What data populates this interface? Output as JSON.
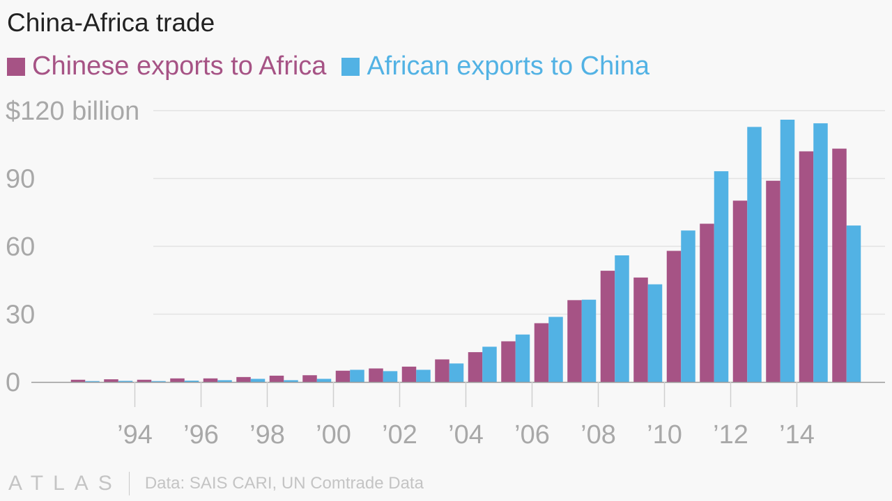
{
  "title": "China-Africa trade",
  "colors": {
    "chinese": "#a65385",
    "african": "#52b2e4"
  },
  "footer": {
    "logo": "ATLAS",
    "source": "Data: SAIS CARI, UN Comtrade Data"
  },
  "chart_data": {
    "type": "bar",
    "title": "China-Africa trade",
    "legend_position": "top-left",
    "grid": true,
    "ylim": [
      0,
      120
    ],
    "y_ticks": [
      {
        "value": 0,
        "label": "0"
      },
      {
        "value": 30,
        "label": "30"
      },
      {
        "value": 60,
        "label": "60"
      },
      {
        "value": 90,
        "label": "90"
      },
      {
        "value": 120,
        "label": "$120 billion"
      }
    ],
    "categories": [
      1992,
      1993,
      1994,
      1995,
      1996,
      1997,
      1998,
      1999,
      2000,
      2001,
      2002,
      2003,
      2004,
      2005,
      2006,
      2007,
      2008,
      2009,
      2010,
      2011,
      2012,
      2013,
      2014,
      2015
    ],
    "x_ticks": [
      {
        "year": 1994,
        "label": "’94"
      },
      {
        "year": 1996,
        "label": "’96"
      },
      {
        "year": 1998,
        "label": "’98"
      },
      {
        "year": 2000,
        "label": "’00"
      },
      {
        "year": 2002,
        "label": "’02"
      },
      {
        "year": 2004,
        "label": "’04"
      },
      {
        "year": 2006,
        "label": "’06"
      },
      {
        "year": 2008,
        "label": "’08"
      },
      {
        "year": 2010,
        "label": "’10"
      },
      {
        "year": 2012,
        "label": "’12"
      },
      {
        "year": 2014,
        "label": "’14"
      }
    ],
    "series": [
      {
        "name": "Chinese exports to Africa",
        "color": "#a65385",
        "values": [
          1.0,
          1.2,
          1.0,
          1.6,
          1.6,
          2.2,
          2.8,
          3.0,
          5.0,
          6.0,
          6.8,
          10.0,
          13.2,
          18.0,
          26.0,
          36.2,
          49.2,
          46.2,
          58.0,
          70.0,
          80.2,
          89.0,
          102.0,
          103.2
        ]
      },
      {
        "name": "African exports to China",
        "color": "#52b2e4",
        "values": [
          0.4,
          0.5,
          0.4,
          0.6,
          0.8,
          1.4,
          0.8,
          1.4,
          5.4,
          4.8,
          5.4,
          8.2,
          15.6,
          21.0,
          28.8,
          36.4,
          56.0,
          43.2,
          67.0,
          93.2,
          112.8,
          116.0,
          114.4,
          69.2
        ]
      }
    ]
  }
}
